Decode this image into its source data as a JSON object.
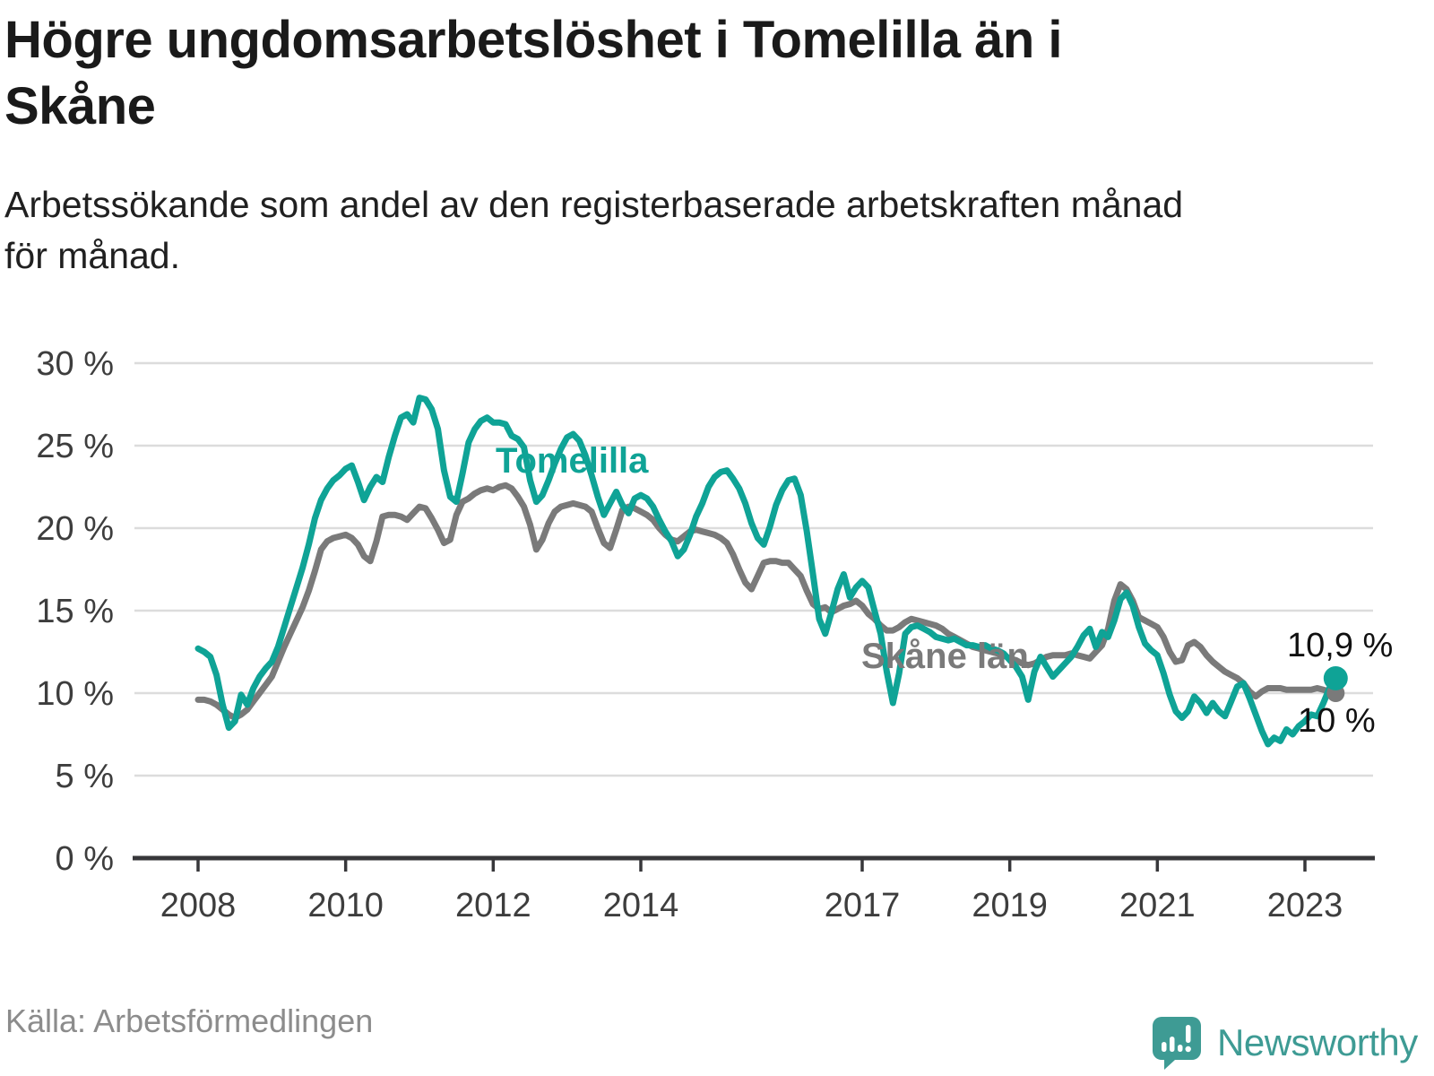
{
  "header": {
    "title_lines": [
      "Högre ungdomsarbetslöshet i Tomelilla än i",
      "Skåne"
    ],
    "subtitle_lines": [
      "Arbetssökande som andel av den registerbaserade arbetskraften månad",
      "för månad."
    ]
  },
  "annotations": {
    "tomelilla_label": "Tomelilla",
    "skane_label": "Skåne län",
    "tomelilla_end_value": "10,9 %",
    "skane_end_value": "10 %"
  },
  "footer": {
    "source": "Källa: Arbetsförmedlingen",
    "brand_name": "Newsworthy"
  },
  "colors": {
    "tomelilla": "#0fa396",
    "skane": "#7a7a7a",
    "grid": "#dcdcdc",
    "axis": "#37373a",
    "axis_text": "#3d3d3d",
    "value_text": "#111111",
    "brand_teal": "#3e9b94",
    "title_text": "#1a1a1a",
    "source_text": "#8c8c8c"
  },
  "chart_data": {
    "type": "line",
    "title": "Högre ungdomsarbetslöshet i Tomelilla än i Skåne",
    "xlabel": "",
    "ylabel": "Arbetssökande som andel av den registerbaserade arbetskraften",
    "frequency": "monthly",
    "start_month": "2008-01",
    "end_month": "2023-06",
    "ylim": [
      0,
      30
    ],
    "grid": "horizontal",
    "y_ticks": [
      {
        "value": 30,
        "label": "30 %"
      },
      {
        "value": 25,
        "label": "25 %"
      },
      {
        "value": 20,
        "label": "20 %"
      },
      {
        "value": 15,
        "label": "15 %"
      },
      {
        "value": 10,
        "label": "10 %"
      },
      {
        "value": 5,
        "label": "5 %"
      },
      {
        "value": 0,
        "label": "0 %"
      }
    ],
    "x_ticks": [
      {
        "year": 2008,
        "label": "2008"
      },
      {
        "year": 2010,
        "label": "2010"
      },
      {
        "year": 2012,
        "label": "2012"
      },
      {
        "year": 2014,
        "label": "2014"
      },
      {
        "year": 2017,
        "label": "2017"
      },
      {
        "year": 2019,
        "label": "2019"
      },
      {
        "year": 2021,
        "label": "2021"
      },
      {
        "year": 2023,
        "label": "2023"
      }
    ],
    "series": [
      {
        "name": "Skåne län",
        "color": "#7a7a7a",
        "end_label": "10 %",
        "end_value": 10.0,
        "values": [
          9.6,
          9.6,
          9.5,
          9.3,
          9.0,
          8.7,
          8.5,
          8.7,
          9.0,
          9.5,
          10.0,
          10.5,
          11.0,
          11.9,
          12.8,
          13.6,
          14.4,
          15.2,
          16.2,
          17.4,
          18.7,
          19.2,
          19.4,
          19.5,
          19.6,
          19.4,
          19.0,
          18.3,
          18.0,
          19.2,
          20.7,
          20.8,
          20.8,
          20.7,
          20.5,
          20.9,
          21.3,
          21.2,
          20.6,
          19.9,
          19.1,
          19.3,
          20.8,
          21.6,
          21.8,
          22.1,
          22.3,
          22.4,
          22.3,
          22.5,
          22.6,
          22.4,
          21.9,
          21.3,
          20.2,
          18.7,
          19.3,
          20.3,
          21.0,
          21.3,
          21.4,
          21.5,
          21.4,
          21.3,
          21.0,
          20.0,
          19.1,
          18.8,
          19.9,
          21.1,
          21.3,
          21.2,
          21.0,
          20.8,
          20.5,
          20.0,
          19.6,
          19.3,
          19.2,
          19.5,
          19.8,
          19.9,
          19.8,
          19.7,
          19.6,
          19.4,
          19.1,
          18.4,
          17.5,
          16.7,
          16.3,
          17.1,
          17.9,
          18.0,
          18.0,
          17.9,
          17.9,
          17.5,
          17.1,
          16.2,
          15.4,
          15.1,
          15.2,
          14.9,
          15.1,
          15.3,
          15.4,
          15.6,
          15.3,
          14.8,
          14.5,
          14.1,
          13.8,
          13.8,
          14.0,
          14.3,
          14.5,
          14.4,
          14.3,
          14.2,
          14.1,
          13.9,
          13.6,
          13.4,
          13.2,
          13.0,
          12.8,
          12.7,
          12.6,
          12.5,
          12.4,
          12.3,
          12.1,
          12.0,
          11.8,
          11.7,
          11.8,
          12.0,
          12.2,
          12.3,
          12.3,
          12.3,
          12.4,
          12.3,
          12.2,
          12.1,
          12.5,
          12.9,
          13.9,
          15.6,
          16.6,
          16.3,
          15.6,
          14.6,
          14.4,
          14.2,
          14.0,
          13.4,
          12.5,
          11.9,
          12.0,
          12.9,
          13.1,
          12.8,
          12.3,
          11.9,
          11.6,
          11.3,
          11.1,
          10.9,
          10.6,
          10.1,
          9.8,
          10.1,
          10.3,
          10.3,
          10.3,
          10.2,
          10.2,
          10.2,
          10.2,
          10.2,
          10.3,
          10.2,
          10.1,
          10.0
        ]
      },
      {
        "name": "Tomelilla",
        "color": "#0fa396",
        "end_label": "10,9 %",
        "end_value": 10.9,
        "values": [
          12.7,
          12.5,
          12.2,
          11.1,
          9.3,
          7.9,
          8.3,
          9.9,
          9.3,
          10.3,
          11.0,
          11.5,
          11.9,
          12.8,
          14.0,
          15.2,
          16.4,
          17.6,
          19.0,
          20.6,
          21.7,
          22.4,
          22.9,
          23.2,
          23.6,
          23.8,
          22.8,
          21.7,
          22.5,
          23.1,
          22.8,
          24.3,
          25.6,
          26.7,
          26.9,
          26.4,
          27.9,
          27.8,
          27.2,
          26.0,
          23.5,
          21.9,
          21.6,
          23.3,
          25.2,
          26.0,
          26.5,
          26.7,
          26.4,
          26.4,
          26.3,
          25.6,
          25.4,
          24.9,
          22.9,
          21.6,
          22.0,
          22.9,
          23.9,
          24.8,
          25.5,
          25.7,
          25.3,
          24.4,
          23.2,
          21.9,
          20.8,
          21.5,
          22.2,
          21.4,
          20.9,
          21.8,
          22.0,
          21.8,
          21.3,
          20.5,
          19.8,
          19.2,
          18.3,
          18.7,
          19.6,
          20.7,
          21.5,
          22.5,
          23.1,
          23.4,
          23.5,
          23.0,
          22.4,
          21.5,
          20.3,
          19.4,
          19.0,
          20.1,
          21.4,
          22.3,
          22.9,
          23.0,
          22.0,
          19.8,
          17.2,
          14.5,
          13.6,
          14.9,
          16.3,
          17.2,
          15.8,
          16.4,
          16.8,
          16.4,
          15.0,
          13.6,
          11.3,
          9.4,
          11.2,
          13.6,
          14.0,
          14.1,
          13.9,
          13.7,
          13.4,
          13.3,
          13.2,
          13.3,
          13.1,
          12.9,
          12.9,
          12.8,
          12.9,
          12.7,
          12.6,
          12.4,
          12.0,
          11.6,
          11.0,
          9.6,
          11.3,
          12.2,
          11.6,
          11.0,
          11.4,
          11.8,
          12.2,
          12.8,
          13.5,
          13.9,
          12.8,
          13.7,
          13.4,
          14.4,
          15.7,
          16.1,
          15.3,
          14.0,
          13.0,
          12.6,
          12.3,
          11.2,
          9.9,
          8.9,
          8.5,
          8.9,
          9.8,
          9.4,
          8.8,
          9.4,
          8.9,
          8.6,
          9.5,
          10.4,
          10.6,
          9.7,
          8.7,
          7.7,
          6.9,
          7.3,
          7.1,
          7.8,
          7.5,
          8.0,
          8.3,
          8.7,
          8.6,
          9.4,
          10.3,
          10.9
        ]
      }
    ]
  }
}
